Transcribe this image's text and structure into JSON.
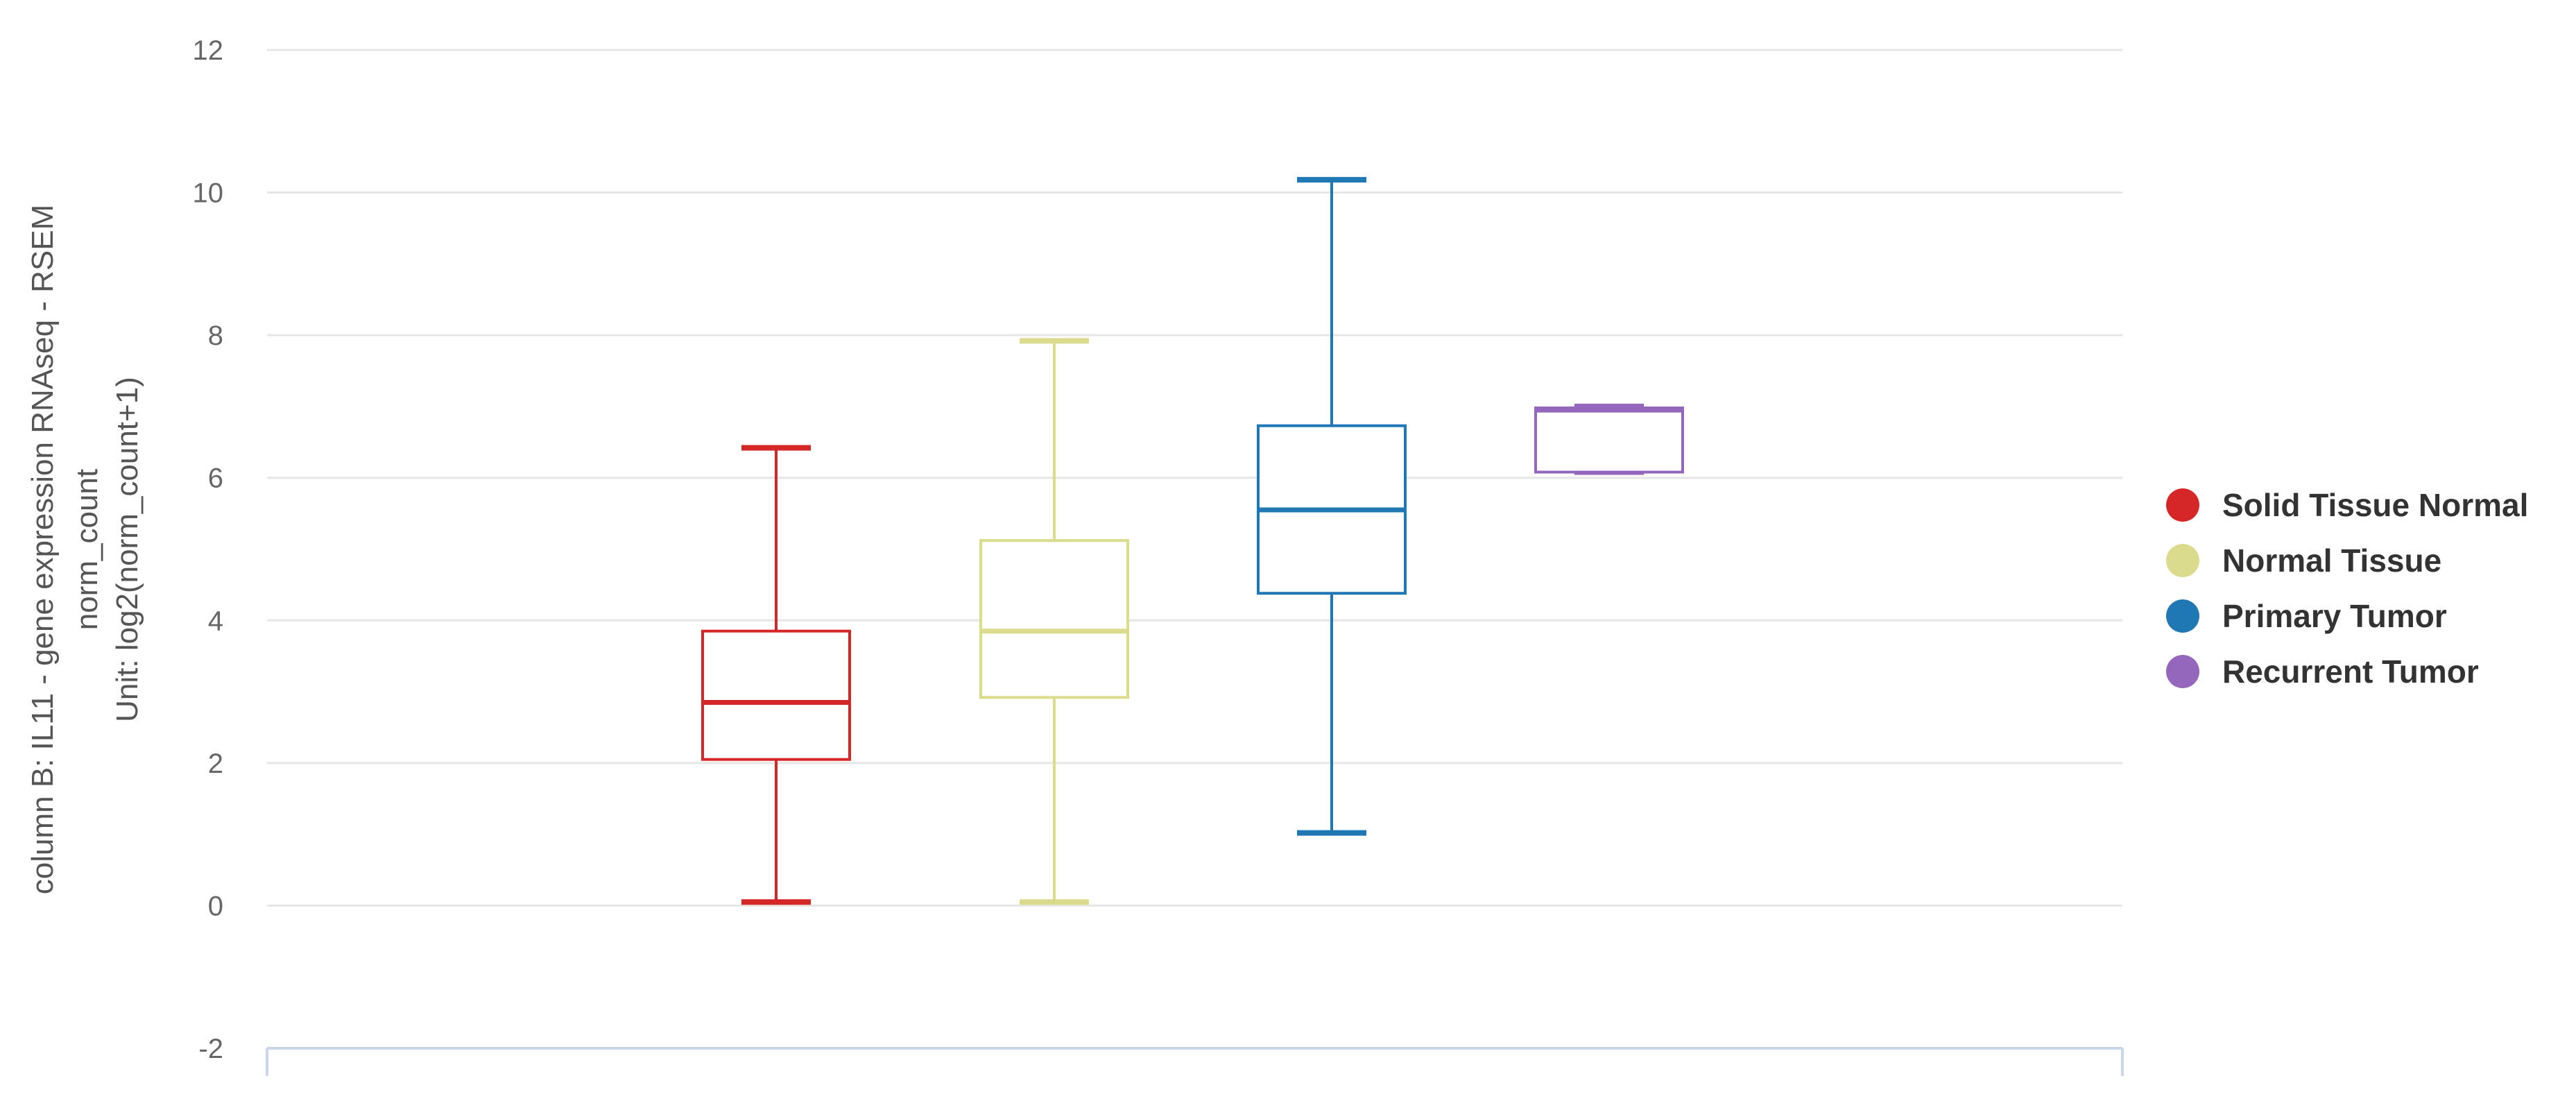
{
  "chart_data": {
    "type": "boxplot",
    "ylabel_lines": [
      "column B: IL11 - gene expression RNAseq - RSEM",
      "norm_count",
      "Unit: log2(norm_count+1)"
    ],
    "ylim": [
      -2,
      12
    ],
    "yticks": [
      "-2",
      "0",
      "2",
      "4",
      "6",
      "8",
      "10",
      "12"
    ],
    "grid": true,
    "legend_position": "right",
    "series": [
      {
        "name": "Solid Tissue Normal",
        "color": "#d62728",
        "min": 0.05,
        "q1": 2.05,
        "median": 2.85,
        "q3": 3.85,
        "max": 6.42
      },
      {
        "name": "Normal Tissue",
        "color": "#dbdb8d",
        "min": 0.05,
        "q1": 2.92,
        "median": 3.85,
        "q3": 5.12,
        "max": 7.92
      },
      {
        "name": "Primary Tumor",
        "color": "#1f77b4",
        "min": 1.02,
        "q1": 4.38,
        "median": 5.55,
        "q3": 6.73,
        "max": 10.18
      },
      {
        "name": "Recurrent Tumor",
        "color": "#9467bd",
        "min": 6.08,
        "q1": 6.08,
        "median": 6.95,
        "q3": 6.98,
        "max": 7.0
      }
    ]
  }
}
